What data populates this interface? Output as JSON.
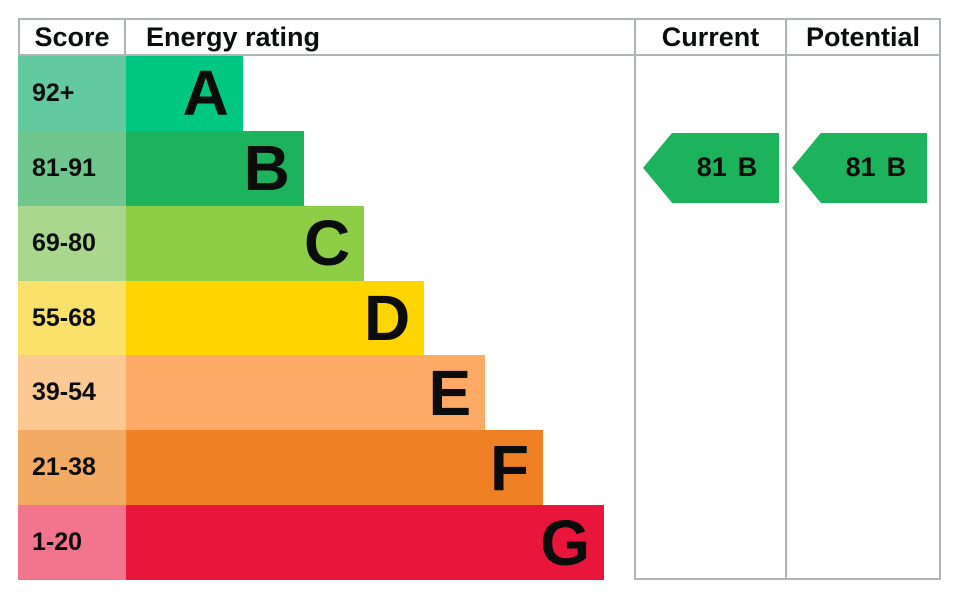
{
  "header": {
    "score": "Score",
    "energy_rating": "Energy rating",
    "current": "Current",
    "potential": "Potential"
  },
  "bands": [
    {
      "range": "92+",
      "letter": "A",
      "band_color": "#00c781",
      "score_color": "#62c9a1",
      "bar_width": "23%"
    },
    {
      "range": "81-91",
      "letter": "B",
      "band_color": "#1db35c",
      "score_color": "#70c78d",
      "bar_width": "35%"
    },
    {
      "range": "69-80",
      "letter": "C",
      "band_color": "#8dce46",
      "score_color": "#aad78e",
      "bar_width": "46.9%"
    },
    {
      "range": "55-68",
      "letter": "D",
      "band_color": "#ffd500",
      "score_color": "#fae26a",
      "bar_width": "58.7%"
    },
    {
      "range": "39-54",
      "letter": "E",
      "band_color": "#fcaa65",
      "score_color": "#fcc993",
      "bar_width": "70.7%"
    },
    {
      "range": "21-38",
      "letter": "F",
      "band_color": "#ef8023",
      "score_color": "#f3aa62",
      "bar_width": "82.1%"
    },
    {
      "range": "1-20",
      "letter": "G",
      "band_color": "#e9153b",
      "score_color": "#f3758d",
      "bar_width": "94.1%"
    }
  ],
  "current": {
    "value": "81",
    "band": "B",
    "color": "#1db35c"
  },
  "potential": {
    "value": "81",
    "band": "B",
    "color": "#1db35c"
  },
  "border_color": "#b1b4b6",
  "chart_data": {
    "type": "bar",
    "title": "Energy rating",
    "columns": [
      "Score",
      "Energy rating",
      "Current",
      "Potential"
    ],
    "categories": [
      "A",
      "B",
      "C",
      "D",
      "E",
      "F",
      "G"
    ],
    "score_ranges": [
      "92+",
      "81-91",
      "69-80",
      "55-68",
      "39-54",
      "21-38",
      "1-20"
    ],
    "bar_lengths_percent": [
      23,
      35,
      46.9,
      58.7,
      70.7,
      82.1,
      94.1
    ],
    "band_colors": [
      "#00c781",
      "#1db35c",
      "#8dce46",
      "#ffd500",
      "#fcaa65",
      "#ef8023",
      "#e9153b"
    ],
    "score_cell_colors": [
      "#62c9a1",
      "#70c78d",
      "#aad78e",
      "#fae26a",
      "#fcc993",
      "#f3aa62",
      "#f3758d"
    ],
    "current_rating": {
      "score": 81,
      "band": "B"
    },
    "potential_rating": {
      "score": 81,
      "band": "B"
    },
    "legend_position": "none",
    "grid": false
  }
}
